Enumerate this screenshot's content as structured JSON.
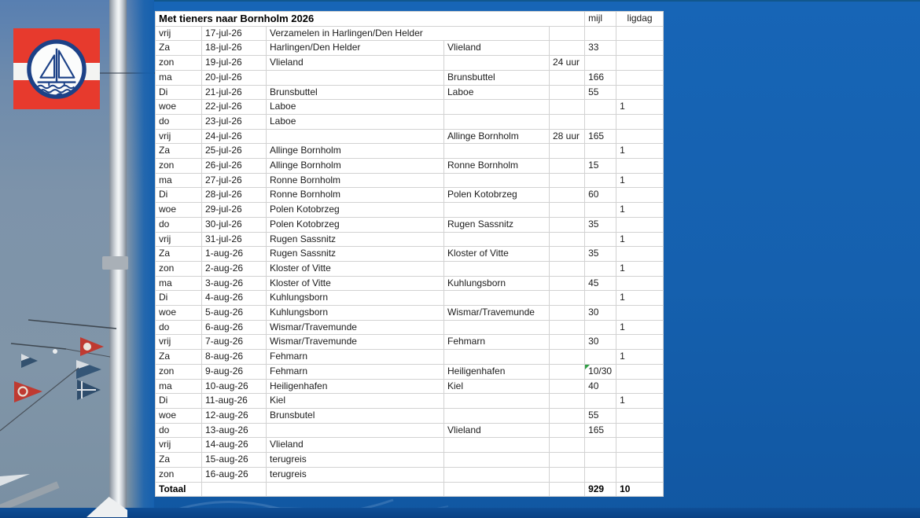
{
  "page": {
    "background_blue": "#1560ae",
    "bottom_bar_blue": "#0a4184",
    "logo_red": "#e73a2d",
    "logo_emblem_blue": "#1c4187",
    "error_marker_green": "#2f9e44"
  },
  "table": {
    "title": "Met tieners naar Bornholm 2026",
    "headers": {
      "mijl": "mijl",
      "ligdag": "ligdag"
    },
    "overflow_rows": [
      0
    ],
    "green_marker": {
      "row": 23,
      "column": "mijl"
    },
    "rows": [
      [
        "vrij",
        "17-jul-26",
        "Verzamelen in Harlingen/Den Helder",
        "",
        "",
        "",
        ""
      ],
      [
        "Za",
        "18-jul-26",
        "Harlingen/Den Helder",
        "Vlieland",
        "",
        "33",
        ""
      ],
      [
        "zon",
        "19-jul-26",
        "Vlieland",
        "",
        "24 uur",
        "",
        ""
      ],
      [
        "ma",
        "20-jul-26",
        "",
        "Brunsbuttel",
        "",
        "166",
        ""
      ],
      [
        "Di",
        "21-jul-26",
        "Brunsbuttel",
        "Laboe",
        "",
        "55",
        ""
      ],
      [
        "woe",
        "22-jul-26",
        "Laboe",
        "",
        "",
        "",
        "1"
      ],
      [
        "do",
        "23-jul-26",
        "Laboe",
        "",
        "",
        "",
        ""
      ],
      [
        "vrij",
        "24-jul-26",
        "",
        "Allinge Bornholm",
        "28 uur",
        "165",
        ""
      ],
      [
        "Za",
        "25-jul-26",
        "Allinge Bornholm",
        "",
        "",
        "",
        "1"
      ],
      [
        "zon",
        "26-jul-26",
        "Allinge Bornholm",
        "Ronne Bornholm",
        "",
        "15",
        ""
      ],
      [
        "ma",
        "27-jul-26",
        "Ronne Bornholm",
        "",
        "",
        "",
        "1"
      ],
      [
        "Di",
        "28-jul-26",
        "Ronne Bornholm",
        "Polen Kotobrzeg",
        "",
        "60",
        ""
      ],
      [
        "woe",
        "29-jul-26",
        "Polen Kotobrzeg",
        "",
        "",
        "",
        "1"
      ],
      [
        "do",
        "30-jul-26",
        "Polen Kotobrzeg",
        "Rugen Sassnitz",
        "",
        "35",
        ""
      ],
      [
        "vrij",
        "31-jul-26",
        "Rugen Sassnitz",
        "",
        "",
        "",
        "1"
      ],
      [
        "Za",
        "1-aug-26",
        "Rugen Sassnitz",
        "Kloster of Vitte",
        "",
        "35",
        ""
      ],
      [
        "zon",
        "2-aug-26",
        "Kloster of Vitte",
        "",
        "",
        "",
        "1"
      ],
      [
        "ma",
        "3-aug-26",
        "Kloster of Vitte",
        "Kuhlungsborn",
        "",
        "45",
        ""
      ],
      [
        "Di",
        "4-aug-26",
        "Kuhlungsborn",
        "",
        "",
        "",
        "1"
      ],
      [
        "woe",
        "5-aug-26",
        "Kuhlungsborn",
        "Wismar/Travemunde",
        "",
        "30",
        ""
      ],
      [
        "do",
        "6-aug-26",
        "Wismar/Travemunde",
        "",
        "",
        "",
        "1"
      ],
      [
        "vrij",
        "7-aug-26",
        "Wismar/Travemunde",
        "Fehmarn",
        "",
        "30",
        ""
      ],
      [
        "Za",
        "8-aug-26",
        "Fehmarn",
        "",
        "",
        "",
        "1"
      ],
      [
        "zon",
        "9-aug-26",
        "Fehmarn",
        "Heiligenhafen",
        "",
        "10/30",
        ""
      ],
      [
        "ma",
        "10-aug-26",
        "Heiligenhafen",
        "Kiel",
        "",
        "40",
        ""
      ],
      [
        "Di",
        "11-aug-26",
        "Kiel",
        "",
        "",
        "",
        "1"
      ],
      [
        "woe",
        "12-aug-26",
        "Brunsbutel",
        "",
        "",
        "55",
        ""
      ],
      [
        "do",
        "13-aug-26",
        "",
        "Vlieland",
        "",
        "165",
        ""
      ],
      [
        "vrij",
        "14-aug-26",
        "Vlieland",
        "",
        "",
        "",
        ""
      ],
      [
        "Za",
        "15-aug-26",
        "terugreis",
        "",
        "",
        "",
        ""
      ],
      [
        "zon",
        "16-aug-26",
        "terugreis",
        "",
        "",
        "",
        ""
      ]
    ],
    "total": {
      "label": "Totaal",
      "mijl": "929",
      "ligdag": "10"
    }
  }
}
